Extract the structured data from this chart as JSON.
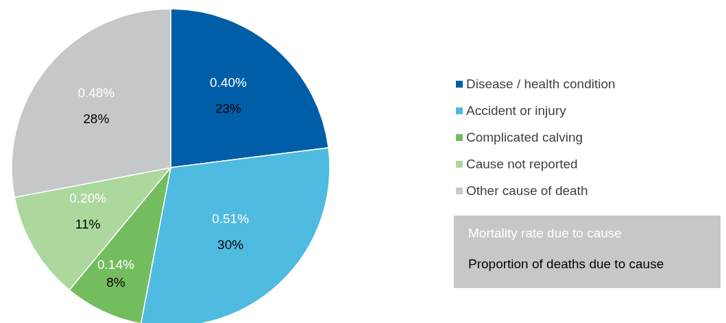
{
  "chart_data": {
    "type": "pie",
    "categories": [
      "Disease / health condition",
      "Accident or injury",
      "Complicated calving",
      "Cause not reported",
      "Other cause of death"
    ],
    "values": [
      23,
      30,
      8,
      11,
      28
    ],
    "colors": [
      "#005ea8",
      "#4fbbe0",
      "#74bd5e",
      "#acd89e",
      "#c5c7c8"
    ],
    "value_labels": [
      "23%",
      "30%",
      "8%",
      "11%",
      "28%"
    ],
    "annotations": [
      {
        "text": "0.40%",
        "x": "Disease / health condition"
      },
      {
        "text": "0.51%",
        "x": "Accident or injury"
      },
      {
        "text": "0.14%",
        "x": "Complicated calving"
      },
      {
        "text": "0.20%",
        "x": "Cause not reported"
      },
      {
        "text": "0.48%",
        "x": "Other cause of death"
      },
      "Mortality rate due to cause",
      "Proportion of deaths due to cause"
    ],
    "legend": "right"
  }
}
